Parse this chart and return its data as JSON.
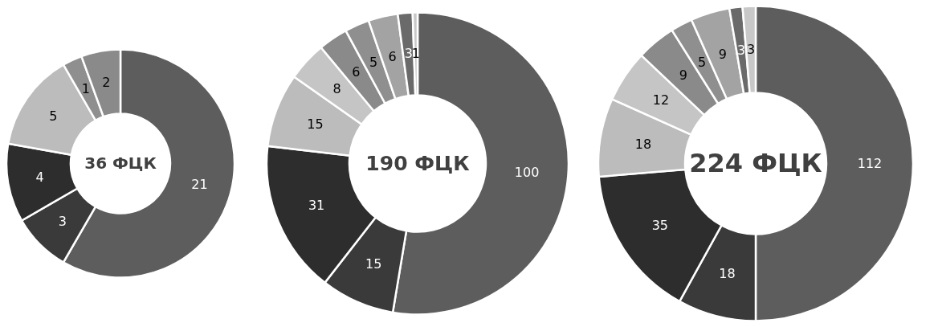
{
  "chart_data": [
    {
      "type": "donut",
      "title": "36 ФЦК",
      "categories": [
        null,
        null,
        null,
        null,
        null,
        null
      ],
      "values": [
        21,
        3,
        4,
        5,
        1,
        2
      ],
      "colors": [
        "#5d5d5d",
        "#3a3a3a",
        "#2d2d2d",
        "#bcbcbc",
        "#8f8f8f",
        "#8a8a8a"
      ],
      "data_labels": true,
      "legend": false
    },
    {
      "type": "donut",
      "title": "190 ФЦК",
      "categories": [
        null,
        null,
        null,
        null,
        null,
        null,
        null,
        null,
        null,
        null
      ],
      "values": [
        100,
        15,
        31,
        15,
        8,
        6,
        5,
        6,
        3,
        1
      ],
      "colors": [
        "#5d5d5d",
        "#3a3a3a",
        "#2d2d2d",
        "#bcbcbc",
        "#c5c5c5",
        "#8a8a8a",
        "#8f8f8f",
        "#a3a3a3",
        "#6a6a6a",
        "#c8c8c8"
      ],
      "data_labels": true,
      "legend": false
    },
    {
      "type": "donut",
      "title": "224 ФЦК",
      "categories": [
        null,
        null,
        null,
        null,
        null,
        null,
        null,
        null,
        null,
        null
      ],
      "values": [
        112,
        18,
        35,
        18,
        12,
        9,
        5,
        9,
        3,
        3
      ],
      "colors": [
        "#5d5d5d",
        "#3a3a3a",
        "#2d2d2d",
        "#bcbcbc",
        "#c5c5c5",
        "#8a8a8a",
        "#8f8f8f",
        "#a3a3a3",
        "#6a6a6a",
        "#c8c8c8"
      ],
      "data_labels": true,
      "legend": false
    }
  ]
}
